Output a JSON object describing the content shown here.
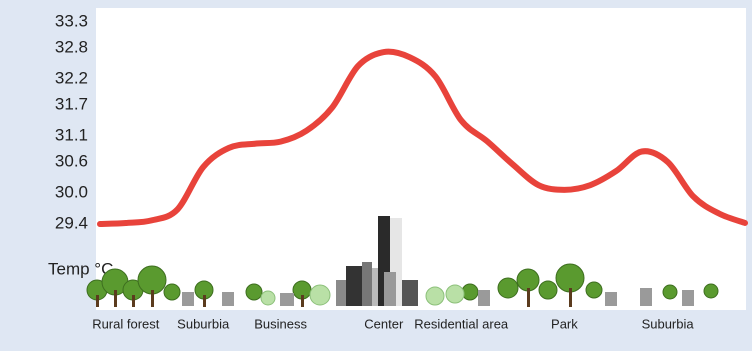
{
  "chart_data": {
    "type": "line",
    "y_label": "Temp °C",
    "categories": [
      null,
      "Rural forest",
      null,
      null,
      "Suburbia",
      null,
      null,
      "Business",
      null,
      null,
      null,
      "Center",
      null,
      null,
      "Residential area",
      null,
      null,
      null,
      "Park",
      null,
      null,
      null,
      "Suburbia",
      null,
      null,
      null
    ],
    "values": [
      29.4,
      29.42,
      29.47,
      29.68,
      30.5,
      30.87,
      30.95,
      30.99,
      31.2,
      31.65,
      32.45,
      32.72,
      32.62,
      32.25,
      31.4,
      31.0,
      30.55,
      30.15,
      30.06,
      30.15,
      30.42,
      30.8,
      30.6,
      29.93,
      29.6,
      29.42
    ],
    "color": "#e8433b",
    "ylim": [
      29.4,
      33.3
    ],
    "yticks": [
      29.4,
      {
        "value": 30,
        "label": "30.0"
      },
      30.6,
      31.1,
      31.7,
      32.2,
      32.8,
      33.3
    ],
    "grid": false
  }
}
